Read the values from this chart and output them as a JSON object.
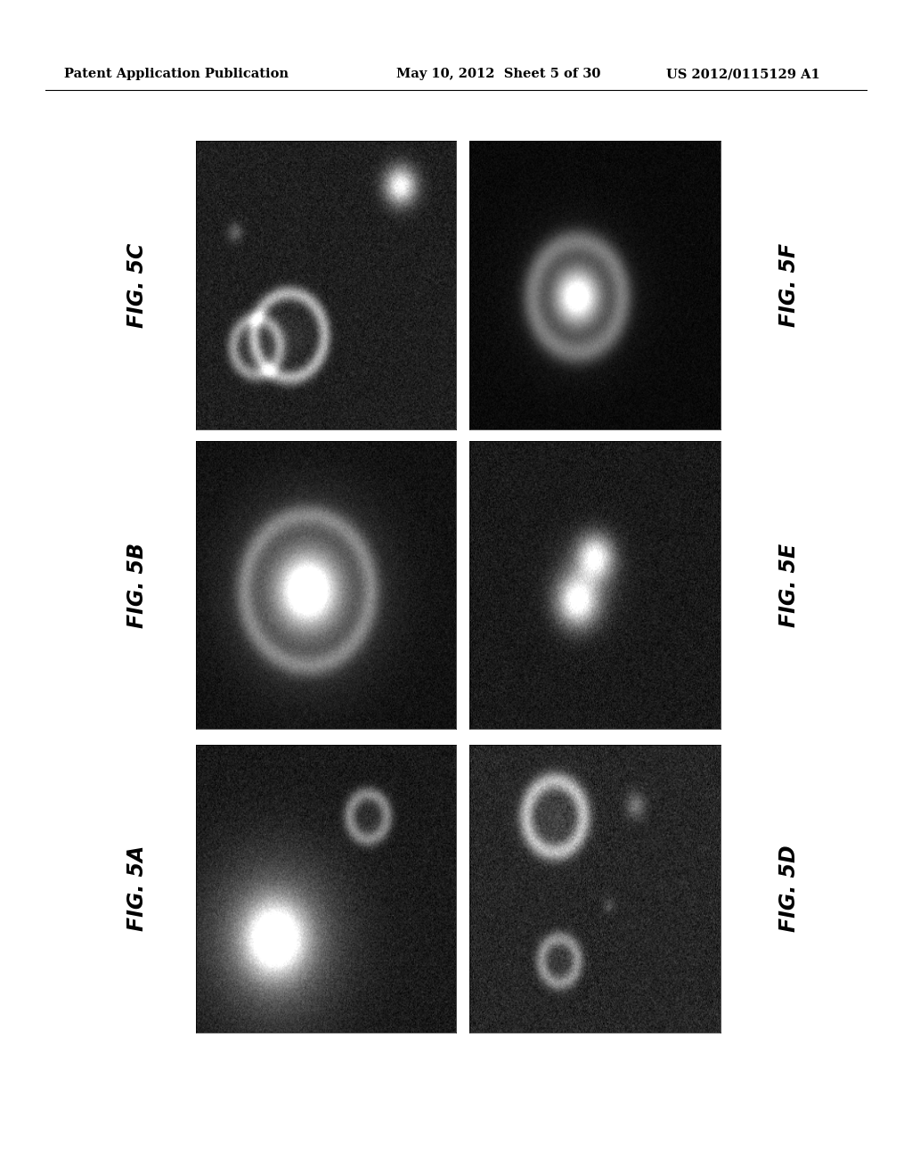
{
  "header_left": "Patent Application Publication",
  "header_mid": "May 10, 2012  Sheet 5 of 30",
  "header_right": "US 2012/0115129 A1",
  "panel_labels": [
    [
      "FIG. 5C",
      "FIG. 5F"
    ],
    [
      "FIG. 5B",
      "FIG. 5E"
    ],
    [
      "FIG. 5A",
      "FIG. 5D"
    ]
  ],
  "background_color": "#ffffff",
  "header_fontsize": 10.5,
  "label_fontsize": 17
}
